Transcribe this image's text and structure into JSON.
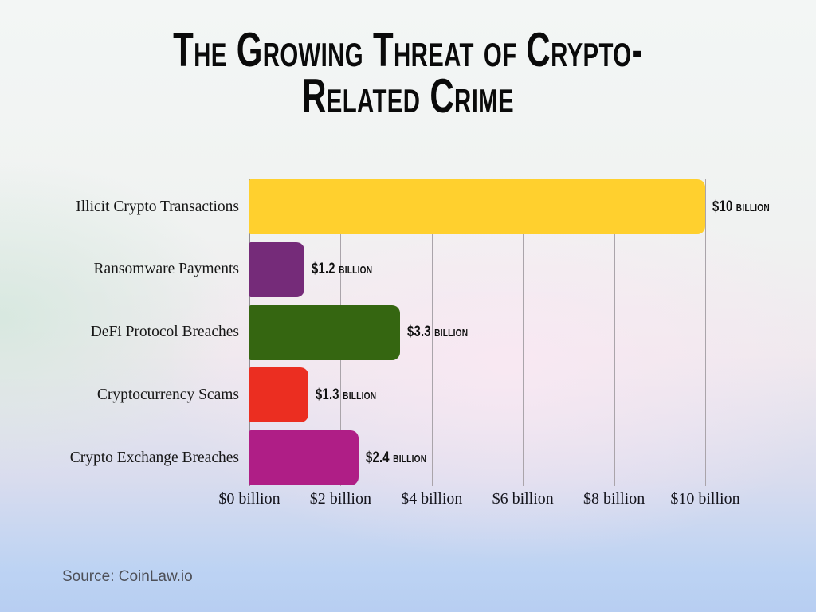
{
  "title": "The Growing Threat of Crypto-Related Crime",
  "source": "Source: CoinLaw.io",
  "colors": {
    "title_text": "#0a0a0a",
    "category_text": "#161616",
    "value_text": "#101010",
    "source_text": "#4d4f57",
    "gridline": "#aaa4aa",
    "axis_line": "#918e94",
    "background_top": "#f3f6f5",
    "background_middle_pink": "#f8edf2",
    "background_bottom_blue": "#b7cef2"
  },
  "chart_data": {
    "type": "bar",
    "orientation": "horizontal",
    "title": "The Growing Threat of Crypto-Related Crime",
    "categories": [
      "Illicit Crypto Transactions",
      "Ransomware Payments",
      "DeFi Protocol Breaches",
      "Cryptocurrency Scams",
      "Crypto Exchange Breaches"
    ],
    "values": [
      10,
      1.2,
      3.3,
      1.3,
      2.4
    ],
    "value_labels": [
      "$10 billion",
      "$1.2 billion",
      "$3.3 billion",
      "$1.3 billion",
      "$2.4 billion"
    ],
    "bar_colors": [
      "#FFD02E",
      "#752B79",
      "#356611",
      "#EB2E21",
      "#AF1E86"
    ],
    "xlabel": "",
    "ylabel": "",
    "xlim": [
      0,
      10
    ],
    "x_tick_values": [
      0,
      2,
      4,
      6,
      8,
      10
    ],
    "x_tick_labels": [
      "$0 billion",
      "$2 billion",
      "$4 billion",
      "$6 billion",
      "$8 billion",
      "$10 billion"
    ],
    "grid": true,
    "legend": false,
    "value_labels_position": "outside-end",
    "source": "Source: CoinLaw.io"
  }
}
